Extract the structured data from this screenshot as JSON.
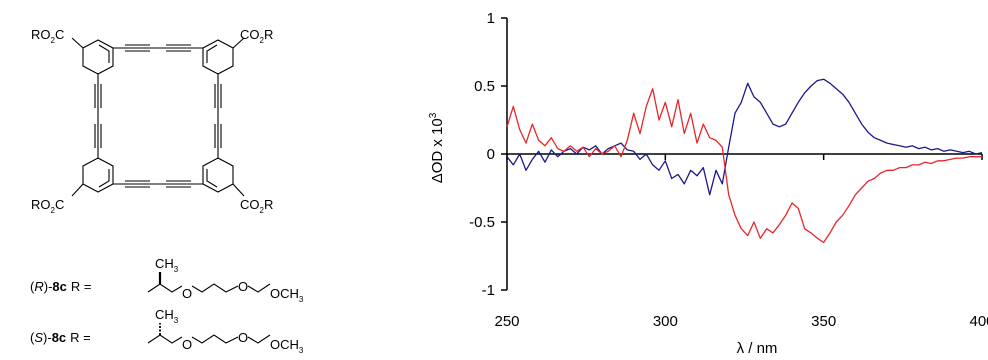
{
  "structure": {
    "corner_group": "RO",
    "corner_group_sub": "2",
    "corner_group_c": "C",
    "corner_group_right": "CO",
    "corner_group_right_tail": "R",
    "r_isomer": {
      "prefix_open": "(",
      "config": "R",
      "prefix_close": ")-",
      "compound": "8c",
      "r_equals": "R =",
      "methyl": "CH",
      "methyl_sub": "3",
      "o1": "O",
      "o2": "O",
      "terminal": "OCH",
      "terminal_sub": "3"
    },
    "s_isomer": {
      "prefix_open": "(",
      "config": "S",
      "prefix_close": ")-",
      "compound": "8c",
      "r_equals": "R =",
      "methyl": "CH",
      "methyl_sub": "3",
      "o1": "O",
      "o2": "O",
      "terminal": "OCH",
      "terminal_sub": "3"
    }
  },
  "chart_data": {
    "type": "line",
    "xlabel": "λ / nm",
    "ylabel": "ΔOD x 10",
    "ylabel_sup": "3",
    "xlim": [
      250,
      400
    ],
    "ylim": [
      -1,
      1
    ],
    "xticks": [
      250,
      300,
      350,
      400
    ],
    "xtick_labels": [
      "250",
      "300",
      "350",
      "400"
    ],
    "yticks": [
      1,
      0.5,
      0,
      -0.5,
      -1
    ],
    "ytick_labels": [
      "1",
      "0.5",
      "0",
      "-0.5",
      "-1"
    ],
    "grid": false,
    "colors": {
      "blue": "#1a1a8c",
      "red": "#e8262a"
    },
    "series": [
      {
        "color": "#1a1a8c",
        "x": [
          250,
          252,
          254,
          256,
          258,
          260,
          262,
          264,
          266,
          268,
          270,
          272,
          274,
          276,
          278,
          280,
          282,
          284,
          286,
          288,
          290,
          292,
          294,
          296,
          298,
          300,
          302,
          304,
          306,
          308,
          310,
          312,
          314,
          316,
          318,
          320,
          322,
          324,
          326,
          328,
          330,
          332,
          334,
          336,
          338,
          340,
          342,
          344,
          346,
          348,
          350,
          352,
          354,
          356,
          358,
          360,
          362,
          364,
          366,
          368,
          370,
          372,
          374,
          376,
          378,
          380,
          382,
          384,
          386,
          388,
          390,
          392,
          394,
          396,
          398,
          400
        ],
        "y": [
          -0.02,
          -0.08,
          0.0,
          -0.12,
          -0.04,
          0.02,
          -0.06,
          0.03,
          -0.02,
          0.02,
          0.04,
          0.0,
          0.05,
          0.03,
          0.06,
          0.0,
          0.04,
          0.06,
          0.08,
          0.03,
          0.02,
          -0.04,
          0.0,
          -0.08,
          -0.12,
          -0.05,
          -0.18,
          -0.15,
          -0.22,
          -0.12,
          -0.16,
          -0.1,
          -0.3,
          -0.12,
          -0.22,
          0.05,
          0.3,
          0.38,
          0.52,
          0.42,
          0.38,
          0.3,
          0.22,
          0.2,
          0.22,
          0.3,
          0.38,
          0.45,
          0.5,
          0.54,
          0.55,
          0.52,
          0.48,
          0.44,
          0.38,
          0.3,
          0.22,
          0.16,
          0.12,
          0.1,
          0.08,
          0.07,
          0.06,
          0.05,
          0.06,
          0.04,
          0.05,
          0.03,
          0.04,
          0.02,
          0.03,
          0.02,
          0.01,
          0.02,
          0.0,
          0.01
        ]
      },
      {
        "color": "#e8262a",
        "x": [
          250,
          252,
          254,
          256,
          258,
          260,
          262,
          264,
          266,
          268,
          270,
          272,
          274,
          276,
          278,
          280,
          282,
          284,
          286,
          288,
          290,
          292,
          294,
          296,
          298,
          300,
          302,
          304,
          306,
          308,
          310,
          312,
          314,
          316,
          318,
          320,
          322,
          324,
          326,
          328,
          330,
          332,
          334,
          336,
          338,
          340,
          342,
          344,
          346,
          348,
          350,
          352,
          354,
          356,
          358,
          360,
          362,
          364,
          366,
          368,
          370,
          372,
          374,
          376,
          378,
          380,
          382,
          384,
          386,
          388,
          390,
          392,
          394,
          396,
          398,
          400
        ],
        "y": [
          0.2,
          0.35,
          0.18,
          0.08,
          0.22,
          0.1,
          0.06,
          0.12,
          0.04,
          0.02,
          0.06,
          0.02,
          0.05,
          -0.02,
          0.04,
          0.0,
          0.02,
          0.06,
          -0.02,
          0.1,
          0.3,
          0.15,
          0.35,
          0.48,
          0.25,
          0.38,
          0.2,
          0.4,
          0.15,
          0.3,
          0.08,
          0.22,
          0.12,
          0.1,
          0.05,
          -0.3,
          -0.45,
          -0.55,
          -0.6,
          -0.5,
          -0.62,
          -0.55,
          -0.58,
          -0.52,
          -0.45,
          -0.36,
          -0.4,
          -0.55,
          -0.58,
          -0.62,
          -0.65,
          -0.58,
          -0.5,
          -0.45,
          -0.38,
          -0.3,
          -0.25,
          -0.2,
          -0.18,
          -0.14,
          -0.12,
          -0.12,
          -0.1,
          -0.1,
          -0.08,
          -0.08,
          -0.06,
          -0.07,
          -0.05,
          -0.05,
          -0.04,
          -0.03,
          -0.03,
          -0.02,
          -0.02,
          -0.02
        ]
      }
    ]
  }
}
